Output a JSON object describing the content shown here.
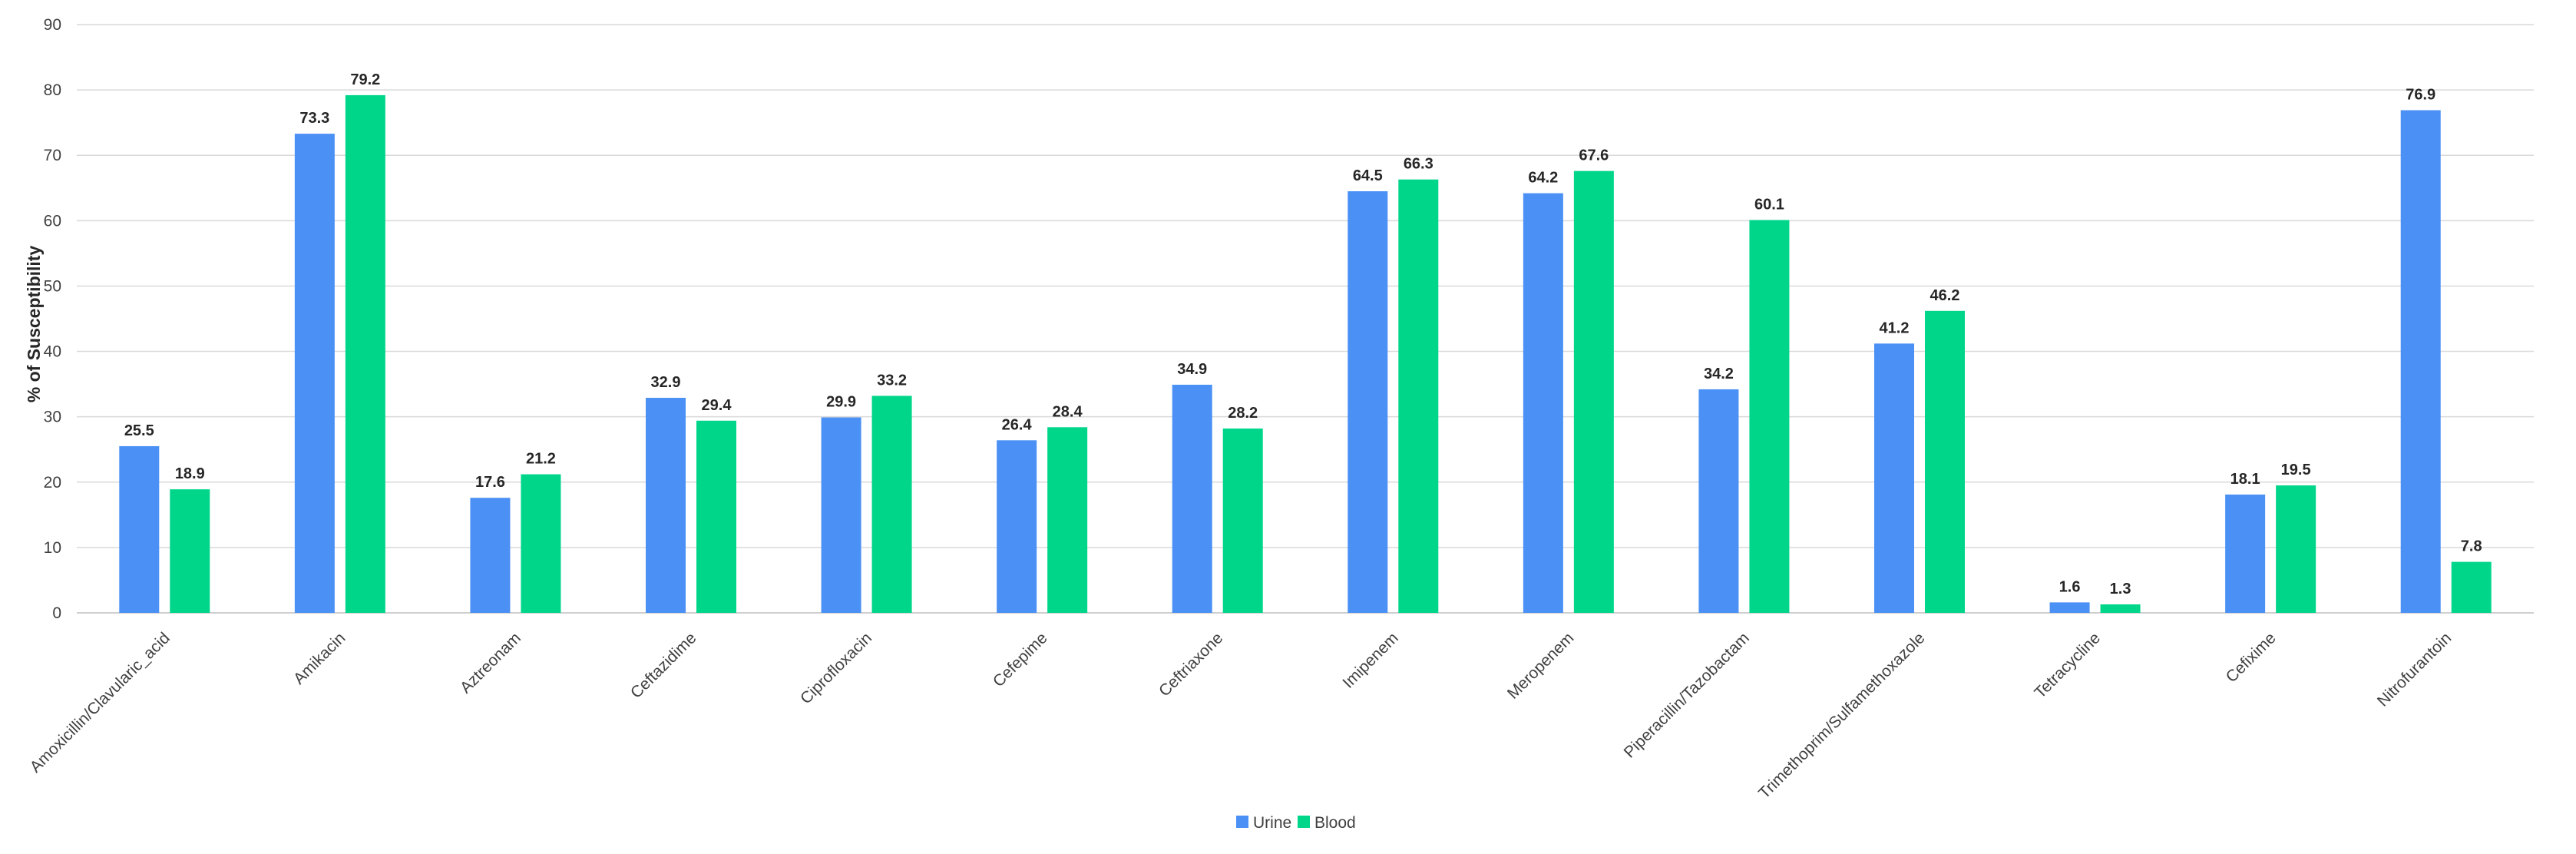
{
  "chart_data": {
    "type": "bar",
    "title": "",
    "xlabel": "",
    "ylabel": "% of Susceptibility",
    "ylim": [
      0,
      90
    ],
    "yticks": [
      0,
      10,
      20,
      30,
      40,
      50,
      60,
      70,
      80,
      90
    ],
    "grid": true,
    "legend_position": "bottom-center",
    "categories": [
      "Amoxicillin/Clavularic_acid",
      "Amikacin",
      "Aztreonam",
      "Ceftazidime",
      "Ciprofloxacin",
      "Cefepime",
      "Ceftriaxone",
      "Imipenem",
      "Meropenem",
      "Piperacillin/Tazobactam",
      "Trimethoprim/Sulfamethoxazole",
      "Tetracycline",
      "Cefixime",
      "Nitrofurantoin"
    ],
    "series": [
      {
        "name": "Urine",
        "color": "#4a90f5",
        "values": [
          25.5,
          73.3,
          17.6,
          32.9,
          29.9,
          26.4,
          34.9,
          64.5,
          64.2,
          34.2,
          41.2,
          1.6,
          18.1,
          76.9
        ]
      },
      {
        "name": "Blood",
        "color": "#00d68a",
        "values": [
          18.9,
          79.2,
          21.2,
          29.4,
          33.2,
          28.4,
          28.2,
          66.3,
          67.6,
          60.1,
          46.2,
          1.3,
          19.5,
          7.8
        ]
      }
    ]
  }
}
